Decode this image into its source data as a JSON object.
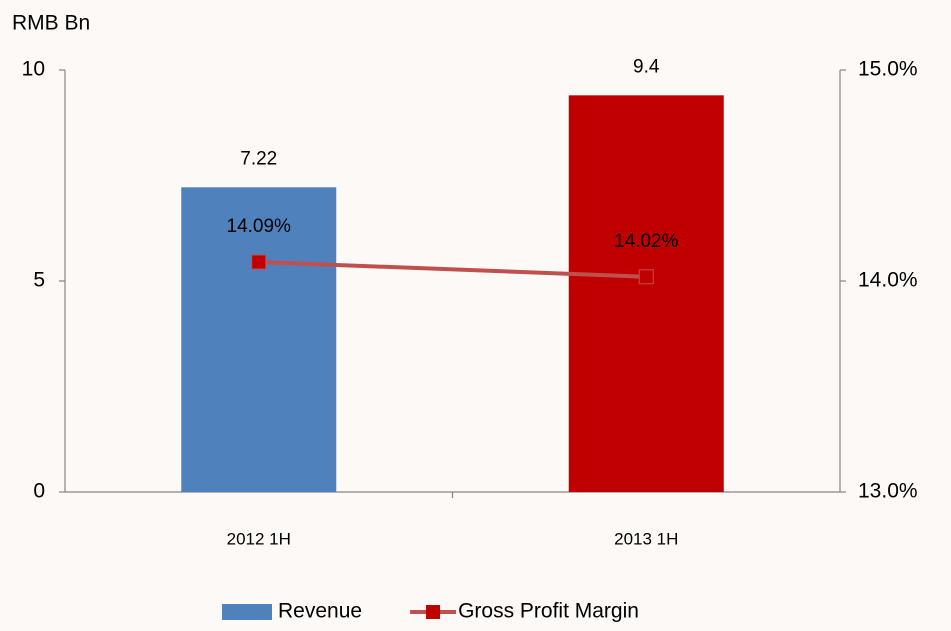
{
  "chart_data": {
    "type": "combo",
    "y_label": "RMB Bn",
    "categories": [
      "2012 1H",
      "2013 1H"
    ],
    "series": [
      {
        "name": "Revenue",
        "type": "bar",
        "colors": [
          "#4f81bd",
          "#c00000"
        ],
        "color": "#4f81bd",
        "values": [
          7.22,
          9.4
        ]
      },
      {
        "name": "Gross Profit Margin",
        "type": "line",
        "axis": "y2",
        "color": "#c0504d",
        "marker_color": "#c00000",
        "values": [
          14.09,
          14.02
        ],
        "value_labels": [
          "14.09%",
          "14.02%"
        ]
      }
    ],
    "ylim": [
      0,
      10
    ],
    "yticks": [
      0,
      5,
      10
    ],
    "y2lim": [
      13,
      15
    ],
    "y2ticks": [
      {
        "value": 13,
        "label": "13.0%"
      },
      {
        "value": 14,
        "label": "14.0%"
      },
      {
        "value": 15,
        "label": "15.0%"
      }
    ],
    "legend": "bottom"
  }
}
